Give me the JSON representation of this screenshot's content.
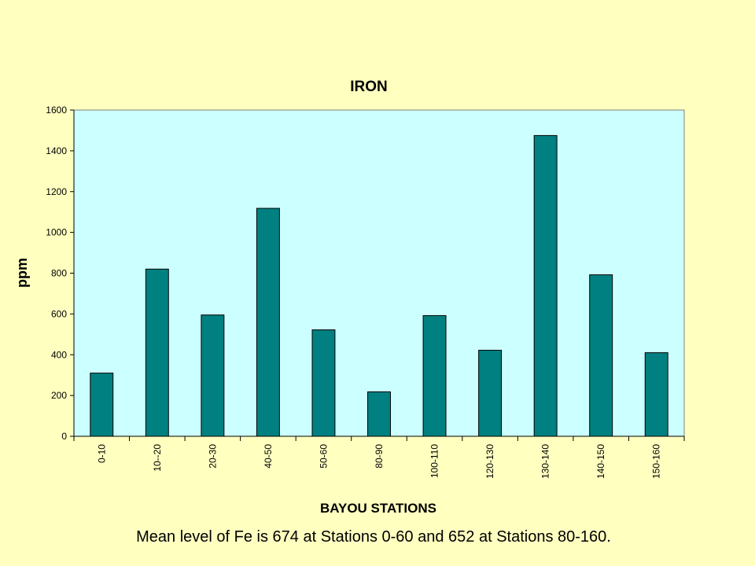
{
  "chart_data": {
    "type": "bar",
    "title": "IRON",
    "xlabel": "BAYOU STATIONS",
    "ylabel": "ppm",
    "categories": [
      "0-10",
      "10--20",
      "20-30",
      "40-50",
      "50-60",
      "80-90",
      "100-110",
      "120-130",
      "130-140",
      "140-150",
      "150-160"
    ],
    "values": [
      310,
      820,
      595,
      1118,
      522,
      218,
      592,
      422,
      1475,
      792,
      410
    ],
    "ylim": [
      0,
      1600
    ],
    "yticks": [
      0,
      200,
      400,
      600,
      800,
      1000,
      1200,
      1400,
      1600
    ],
    "grid": false,
    "legend": "none",
    "colors": {
      "bar": "#008080",
      "plot_background": "#ccffff",
      "page_background": "#ffffc0"
    }
  },
  "caption": "Mean level of Fe is 674 at Stations 0-60 and 652 at Stations 80-160."
}
